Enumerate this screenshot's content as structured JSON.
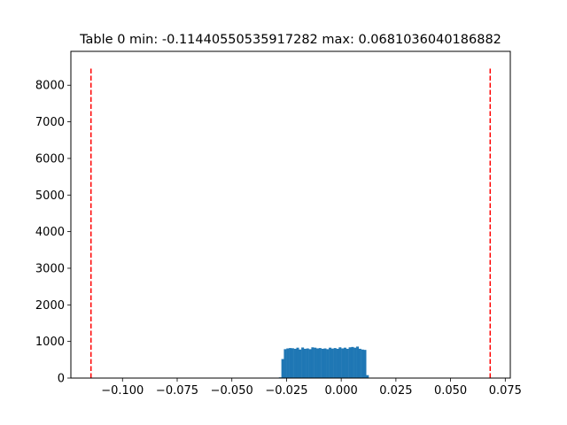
{
  "chart_data": {
    "type": "bar",
    "title": "Table 0 min: -0.11440550535917282 max: 0.0681036040186882",
    "xlabel": "",
    "ylabel": "",
    "xlim": [
      -0.1236,
      0.0773
    ],
    "ylim": [
      0,
      8925
    ],
    "grid": false,
    "legend": "none",
    "x_ticks": [
      -0.1,
      -0.075,
      -0.05,
      -0.025,
      0.0,
      0.025,
      0.05,
      0.075
    ],
    "x_tick_labels": [
      "−0.100",
      "−0.075",
      "−0.050",
      "−0.025",
      "0.000",
      "0.025",
      "0.050",
      "0.075"
    ],
    "y_ticks": [
      0,
      1000,
      2000,
      3000,
      4000,
      5000,
      6000,
      7000,
      8000
    ],
    "y_tick_labels": [
      "0",
      "1000",
      "2000",
      "3000",
      "4000",
      "5000",
      "6000",
      "7000",
      "8000"
    ],
    "bar_color": "#1f77b4",
    "line_color": "#ff0000",
    "bins": {
      "start": -0.0285,
      "width": 0.00114,
      "counts": [
        20,
        520,
        790,
        810,
        820,
        815,
        800,
        830,
        780,
        835,
        800,
        810,
        790,
        840,
        830,
        810,
        820,
        800,
        810,
        790,
        830,
        805,
        820,
        800,
        840,
        810,
        830,
        800,
        840,
        850,
        830,
        860,
        800,
        780,
        770,
        80
      ]
    },
    "vlines": [
      {
        "x": -0.11440550535917282,
        "ymin": 0,
        "ymax": 8500,
        "style": "dashed"
      },
      {
        "x": 0.0681036040186882,
        "ymin": 0,
        "ymax": 8500,
        "style": "dashed"
      }
    ]
  }
}
